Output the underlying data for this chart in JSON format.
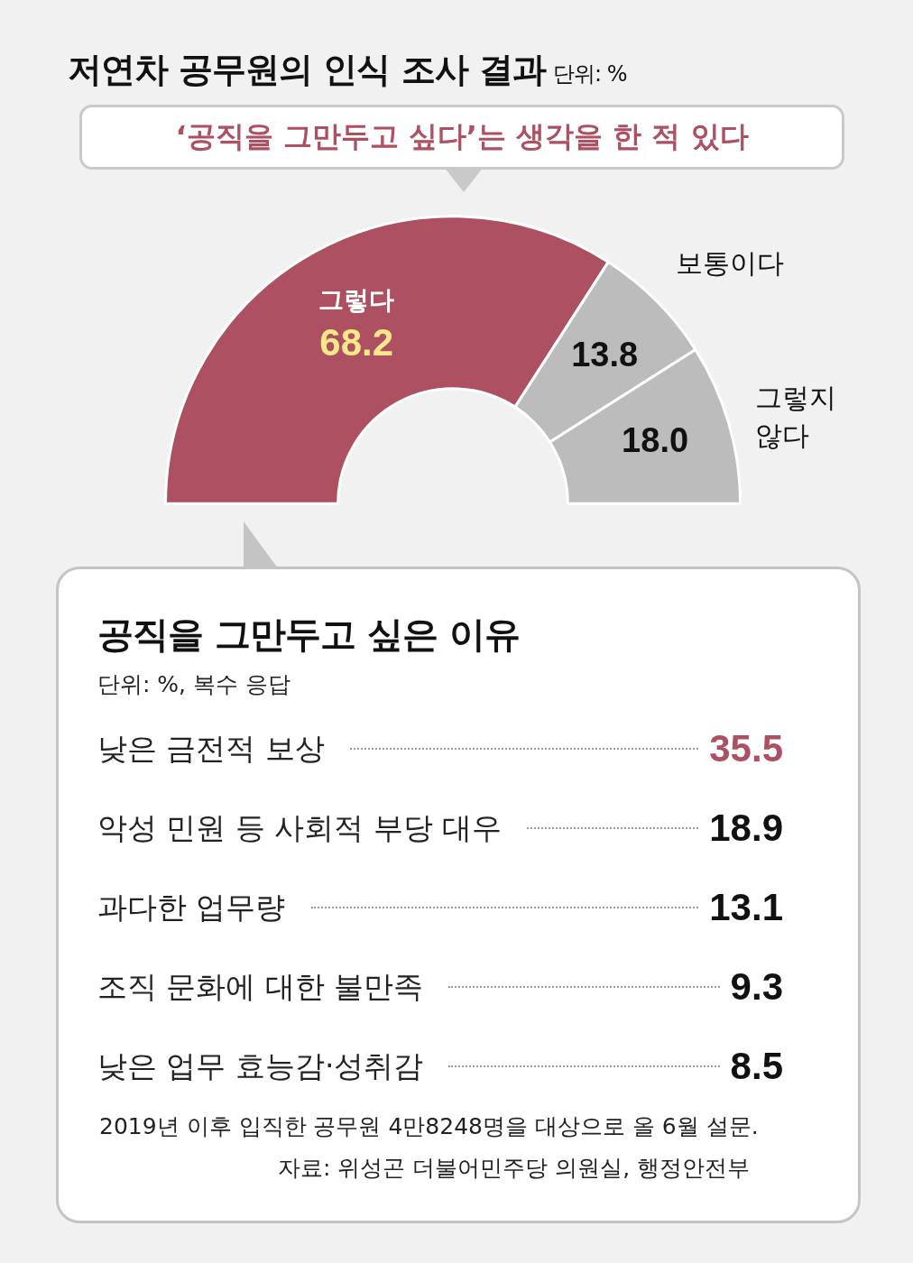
{
  "chart_data": [
    {
      "type": "donut",
      "title": "저연차 공무원의 인식 조사 결과",
      "subtitle": "‘공직을 그만두고 싶다’는 생각을 한 적 있다",
      "annotations": [
        "단위: %"
      ],
      "categories": [
        "그렇다",
        "보통이다",
        "그렇지 않다"
      ],
      "values": [
        68.2,
        13.8,
        18.0
      ],
      "colors": [
        "#ad5062",
        "#bcbcbc",
        "#bcbcbc"
      ],
      "value_labels": [
        "68.2",
        "13.8",
        "18.0"
      ]
    },
    {
      "type": "other",
      "title": "공직을 그만두고 싶은 이유",
      "subtitle": "단위: %, 복수 응답",
      "categories": [
        "낮은 금전적 보상",
        "악성 민원 등 사회적 부당 대우",
        "과다한 업무량",
        "조직 문화에 대한 불만족",
        "낮은 업무 효능감·성취감"
      ],
      "values": [
        35.5,
        18.9,
        13.1,
        9.3,
        8.5
      ],
      "data_labels": true,
      "annotations": [
        "2019년 이후 입직한 공무원 4만8248명을 대상으로 올 6월 설문.",
        "자료: 위성곤 더불어민주당 의원실, 행정안전부"
      ]
    }
  ]
}
